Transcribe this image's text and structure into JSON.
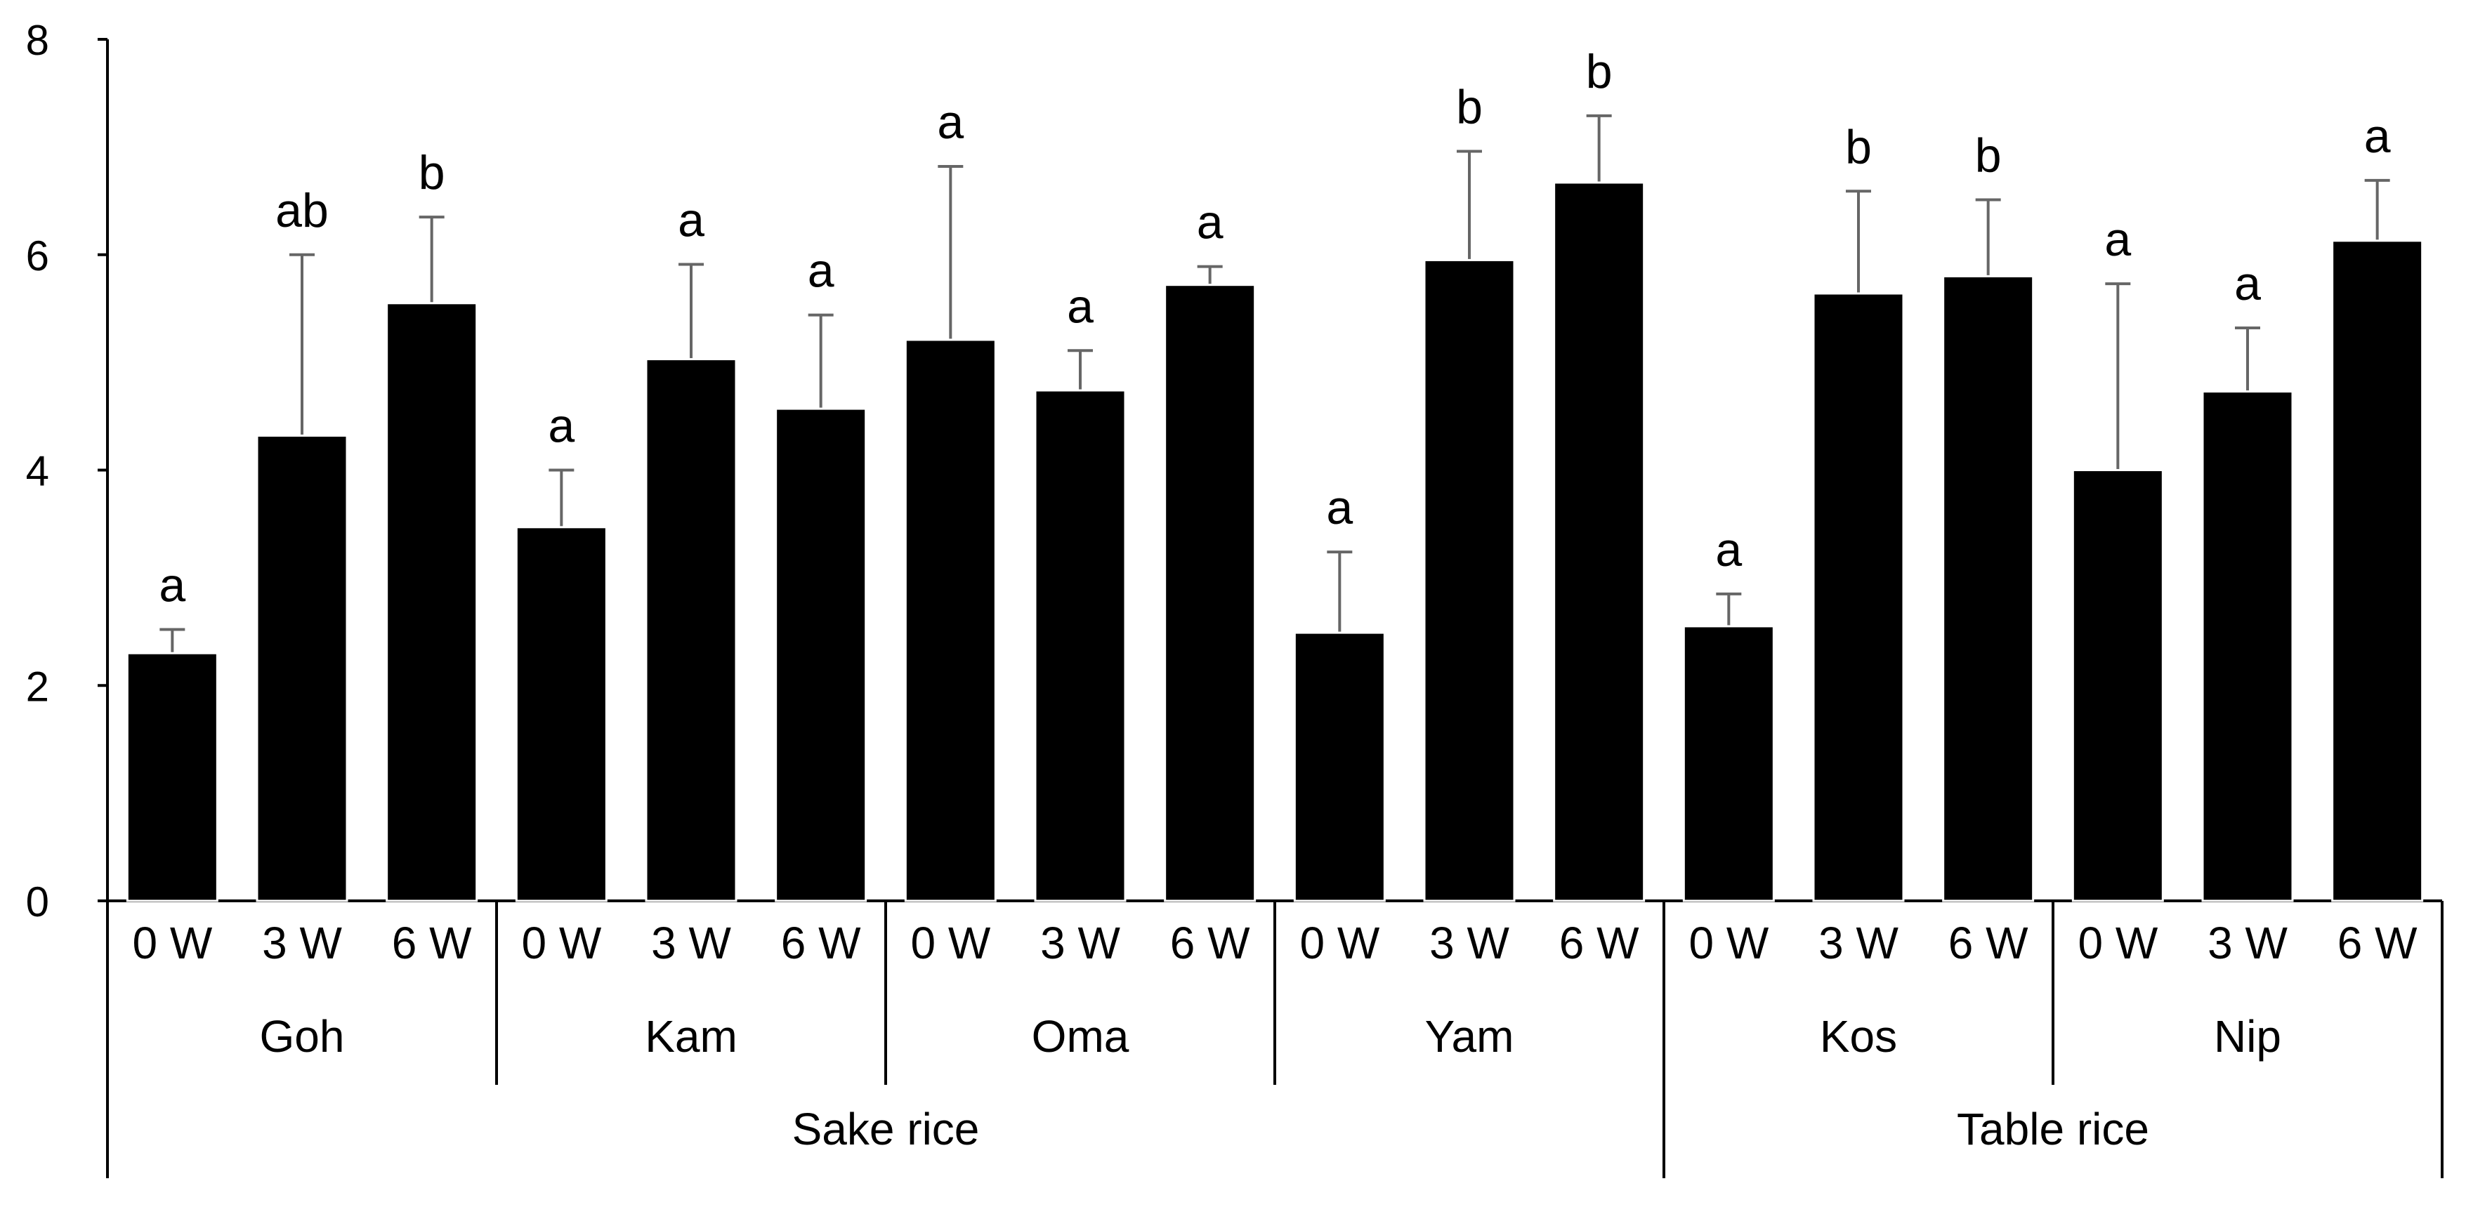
{
  "chart_data": {
    "type": "bar",
    "title": "",
    "xlabel": "",
    "ylabel": "",
    "ylim": [
      0,
      8
    ],
    "yticks": [
      "0",
      "2",
      "4",
      "6",
      "8"
    ],
    "legend": "none",
    "grid": false,
    "colors": {
      "bar": "#000000",
      "error_bar": "#666666",
      "axis": "#000000"
    },
    "groups": [
      {
        "name": "Sake rice",
        "cultivars": [
          "Goh",
          "Kam",
          "Oma",
          "Yam"
        ]
      },
      {
        "name": "Table rice",
        "cultivars": [
          "Kos",
          "Nip"
        ]
      }
    ],
    "cultivars": [
      {
        "name": "Goh",
        "timepoints": [
          "0 W",
          "3 W",
          "6 W"
        ],
        "values": [
          2.3,
          4.32,
          5.55
        ],
        "errors": [
          0.22,
          1.68,
          0.8
        ],
        "letters": [
          "a",
          "ab",
          "b"
        ]
      },
      {
        "name": "Kam",
        "timepoints": [
          "0 W",
          "3 W",
          "6 W"
        ],
        "values": [
          3.47,
          5.03,
          4.57
        ],
        "errors": [
          0.53,
          0.88,
          0.87
        ],
        "letters": [
          "a",
          "a",
          "a"
        ]
      },
      {
        "name": "Oma",
        "timepoints": [
          "0 W",
          "3 W",
          "6 W"
        ],
        "values": [
          5.21,
          4.74,
          5.72
        ],
        "errors": [
          1.61,
          0.37,
          0.17
        ],
        "letters": [
          "a",
          "a",
          "a"
        ]
      },
      {
        "name": "Yam",
        "timepoints": [
          "0 W",
          "3 W",
          "6 W"
        ],
        "values": [
          2.49,
          5.95,
          6.67
        ],
        "errors": [
          0.75,
          1.01,
          0.62
        ],
        "letters": [
          "a",
          "b",
          "b"
        ]
      },
      {
        "name": "Kos",
        "timepoints": [
          "0 W",
          "3 W",
          "6 W"
        ],
        "values": [
          2.55,
          5.64,
          5.8
        ],
        "errors": [
          0.3,
          0.95,
          0.71
        ],
        "letters": [
          "a",
          "b",
          "b"
        ]
      },
      {
        "name": "Nip",
        "timepoints": [
          "0 W",
          "3 W",
          "6 W"
        ],
        "values": [
          4.0,
          4.73,
          6.13
        ],
        "errors": [
          1.73,
          0.59,
          0.56
        ],
        "letters": [
          "a",
          "a",
          "a"
        ]
      }
    ]
  }
}
